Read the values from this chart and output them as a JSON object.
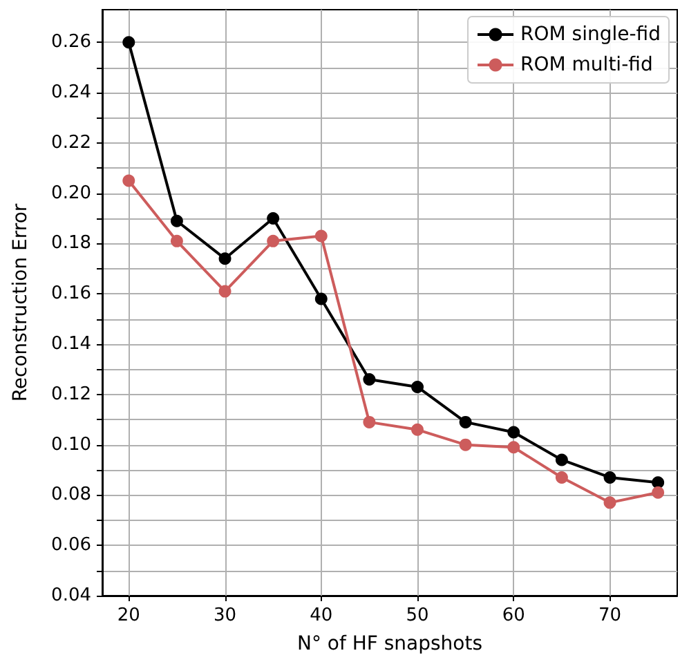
{
  "chart_data": {
    "type": "line",
    "xlabel": "N° of HF snapshots",
    "ylabel": "Reconstruction Error",
    "x": [
      20,
      25,
      30,
      35,
      40,
      45,
      50,
      55,
      60,
      65,
      70,
      75
    ],
    "series": [
      {
        "name": "ROM single-fid",
        "color": "#000000",
        "values": [
          0.26,
          0.189,
          0.174,
          0.19,
          0.158,
          0.126,
          0.123,
          0.109,
          0.105,
          0.094,
          0.087,
          0.085
        ]
      },
      {
        "name": "ROM multi-fid",
        "color": "#cd5c5c",
        "values": [
          0.205,
          0.181,
          0.161,
          0.181,
          0.183,
          0.109,
          0.106,
          0.1,
          0.099,
          0.087,
          0.077,
          0.081
        ]
      }
    ],
    "xlim": [
      17.25,
      77
    ],
    "xticks": [
      20,
      30,
      40,
      50,
      60,
      70
    ],
    "ylim": [
      0.04,
      0.273
    ],
    "yticks": [
      0.04,
      {
        "value": 0.05,
        "label": null
      },
      0.06,
      {
        "value": 0.07,
        "label": null
      },
      0.08,
      {
        "value": 0.09,
        "label": null
      },
      {
        "value": 0.1,
        "label": "0.10"
      },
      {
        "value": 0.11,
        "label": null
      },
      0.12,
      {
        "value": 0.13,
        "label": null
      },
      0.14,
      {
        "value": 0.15,
        "label": null
      },
      0.16,
      {
        "value": 0.17,
        "label": null
      },
      0.18,
      {
        "value": 0.19,
        "label": null
      },
      {
        "value": 0.2,
        "label": "0.20"
      },
      {
        "value": 0.21,
        "label": null
      },
      0.22,
      {
        "value": 0.23,
        "label": null
      },
      0.24,
      {
        "value": 0.25,
        "label": null
      },
      0.26
    ],
    "grid": true,
    "legend": "top right",
    "marker": "circle",
    "line_style": "solid"
  }
}
